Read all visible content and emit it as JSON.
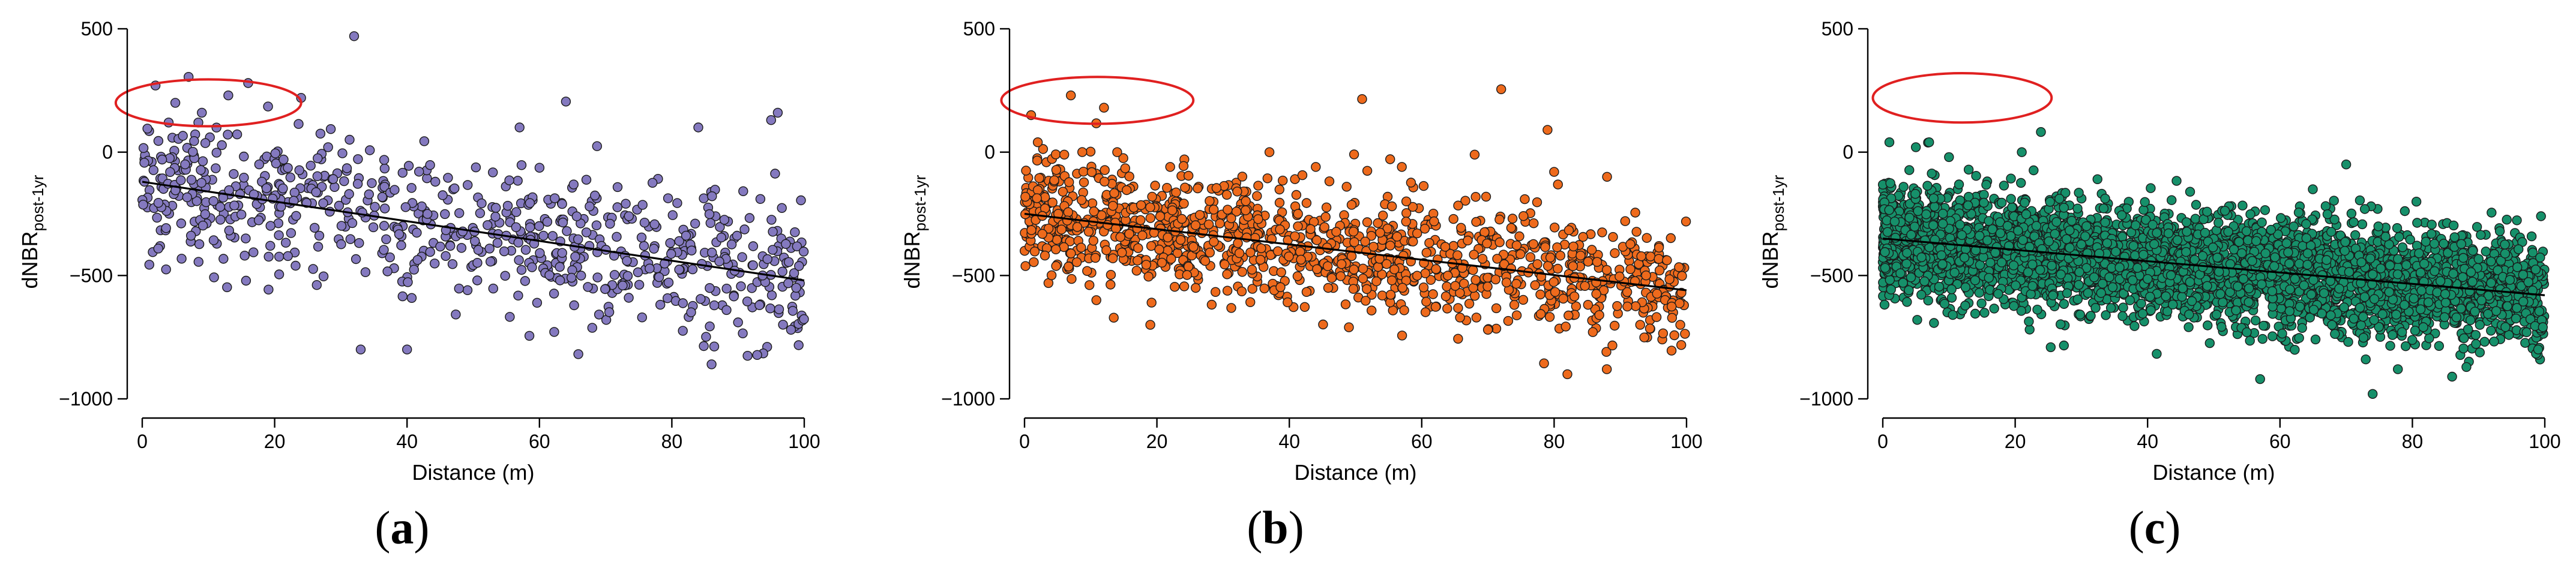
{
  "chart_data": [
    {
      "type": "scatter",
      "panel_label": "a",
      "xlabel": "Distance (m)",
      "ylabel": "dNBR",
      "ylabel_sub": "post-1yr",
      "xlim": [
        0,
        100
      ],
      "ylim": [
        -1000,
        500
      ],
      "xticks": [
        "0",
        "20",
        "40",
        "60",
        "80",
        "100"
      ],
      "yticks": [
        "−1000",
        "−500",
        "0",
        "500"
      ],
      "point_color": "#8479bf",
      "n_points": 720,
      "trend": {
        "x": [
          0,
          100
        ],
        "y": [
          -120,
          -520
        ]
      },
      "scatter_sd": 150,
      "highlight_ellipse": {
        "cx": 10,
        "cy": 200,
        "rx": 14,
        "ry": 95,
        "color": "#e02020"
      },
      "points": [
        [
          32,
          470
        ],
        [
          7,
          305
        ],
        [
          2,
          270
        ],
        [
          16,
          280
        ],
        [
          13,
          230
        ],
        [
          5,
          200
        ],
        [
          9,
          160
        ],
        [
          19,
          185
        ],
        [
          24,
          220
        ],
        [
          64,
          205
        ],
        [
          96,
          160
        ],
        [
          95,
          130
        ],
        [
          84,
          100
        ],
        [
          57,
          100
        ],
        [
          3,
          -30
        ],
        [
          40,
          -800
        ],
        [
          86,
          -860
        ],
        [
          33,
          -800
        ],
        [
          98,
          -720
        ],
        [
          90,
          -690
        ]
      ]
    },
    {
      "type": "scatter",
      "panel_label": "b",
      "xlabel": "Distance (m)",
      "ylabel": "dNBR",
      "ylabel_sub": "post-1yr",
      "xlim": [
        0,
        100
      ],
      "ylim": [
        -1000,
        500
      ],
      "xticks": [
        "0",
        "20",
        "40",
        "60",
        "80",
        "100"
      ],
      "yticks": [
        "−1000",
        "−500",
        "0",
        "500"
      ],
      "point_color": "#ee6a1c",
      "n_points": 1200,
      "trend": {
        "x": [
          0,
          100
        ],
        "y": [
          -250,
          -560
        ]
      },
      "scatter_sd": 125,
      "highlight_ellipse": {
        "cx": 11,
        "cy": 210,
        "rx": 14.5,
        "ry": 95,
        "color": "#e02020"
      },
      "points": [
        [
          1,
          150
        ],
        [
          7,
          230
        ],
        [
          12,
          180
        ],
        [
          51,
          215
        ],
        [
          72,
          255
        ],
        [
          79,
          90
        ],
        [
          2,
          40
        ],
        [
          6,
          -10
        ],
        [
          14,
          0
        ],
        [
          22,
          -60
        ],
        [
          37,
          0
        ],
        [
          44,
          -60
        ],
        [
          57,
          -60
        ],
        [
          68,
          -10
        ],
        [
          80,
          -80
        ],
        [
          88,
          -100
        ],
        [
          19,
          -700
        ],
        [
          70,
          -720
        ],
        [
          82,
          -900
        ],
        [
          93,
          -700
        ],
        [
          49,
          -710
        ]
      ]
    },
    {
      "type": "scatter",
      "panel_label": "c",
      "xlabel": "Distance (m)",
      "ylabel": "dNBR",
      "ylabel_sub": "post-1yr",
      "xlim": [
        0,
        100
      ],
      "ylim": [
        -1000,
        500
      ],
      "xticks": [
        "0",
        "20",
        "40",
        "60",
        "80",
        "100"
      ],
      "yticks": [
        "−1000",
        "−500",
        "0",
        "500"
      ],
      "point_color": "#16906a",
      "n_points": 4200,
      "trend": {
        "x": [
          0,
          100
        ],
        "y": [
          -350,
          -580
        ]
      },
      "scatter_sd": 110,
      "highlight_ellipse": {
        "cx": 12,
        "cy": 220,
        "rx": 13.5,
        "ry": 100,
        "color": "#e02020"
      },
      "points": [
        [
          1,
          40
        ],
        [
          5,
          20
        ],
        [
          7,
          40
        ],
        [
          10,
          -20
        ],
        [
          21,
          0
        ],
        [
          70,
          -50
        ],
        [
          74,
          -980
        ],
        [
          86,
          -910
        ],
        [
          57,
          -920
        ],
        [
          99,
          -800
        ]
      ]
    }
  ]
}
